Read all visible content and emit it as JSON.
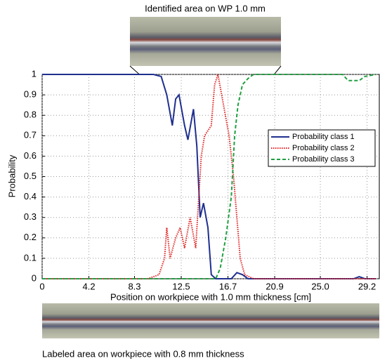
{
  "chart_data": {
    "type": "line",
    "title": "Identified area on WP 1.0 mm",
    "subtitle": "Labeled area on workpiece with 0.8 mm thickness",
    "xlabel": "Position on workpiece with 1.0 mm thickness  [cm]",
    "ylabel": "Probability",
    "xlim": [
      0,
      30.3
    ],
    "ylim": [
      0,
      1
    ],
    "xticks": [
      0,
      4.2,
      8.3,
      12.5,
      16.7,
      20.9,
      {
        "value": 25,
        "label": "25.0"
      },
      29.2
    ],
    "yticks": [
      0,
      0.1,
      0.2,
      0.3,
      0.4,
      0.5,
      0.6,
      0.7,
      0.8,
      0.9,
      1
    ],
    "grid": true,
    "legend": "right",
    "series": [
      {
        "name": "Probability class 1",
        "color": "#1f2f8f",
        "dash": "solid",
        "x": [
          0,
          5,
          10,
          10.7,
          11.2,
          11.7,
          12.0,
          12.3,
          12.8,
          13.1,
          13.6,
          13.9,
          14.2,
          14.5,
          14.9,
          15.2,
          15.6,
          17,
          17.5,
          18,
          18.5,
          28,
          28.5,
          29,
          30
        ],
        "values": [
          1,
          1,
          1,
          0.99,
          0.9,
          0.75,
          0.88,
          0.9,
          0.75,
          0.68,
          0.83,
          0.65,
          0.3,
          0.37,
          0.25,
          0.02,
          0,
          0,
          0.03,
          0.02,
          0,
          0,
          0.01,
          0,
          0
        ]
      },
      {
        "name": "Probability class 2",
        "color": "#e02020",
        "dash": "dotted",
        "x": [
          0,
          9.5,
          10.5,
          11.0,
          11.2,
          11.5,
          12.0,
          12.4,
          12.8,
          13.3,
          13.8,
          14.3,
          14.6,
          15.2,
          15.5,
          15.8,
          16.3,
          16.8,
          17.2,
          17.5,
          17.8,
          18.2,
          19,
          30
        ],
        "values": [
          0,
          0,
          0.02,
          0.1,
          0.25,
          0.1,
          0.2,
          0.25,
          0.15,
          0.3,
          0.15,
          0.6,
          0.7,
          0.75,
          0.95,
          1,
          0.85,
          0.7,
          0.5,
          0.3,
          0.1,
          0.02,
          0,
          0
        ]
      },
      {
        "name": "Probability class 3",
        "color": "#20a040",
        "dash": "dashed",
        "x": [
          0,
          15.6,
          16.0,
          16.5,
          17.0,
          17.3,
          17.6,
          18.0,
          18.5,
          19,
          27,
          27.5,
          28.5,
          29,
          30
        ],
        "values": [
          0,
          0,
          0.05,
          0.2,
          0.4,
          0.7,
          0.85,
          0.95,
          0.98,
          1,
          1,
          0.97,
          0.97,
          0.99,
          1
        ]
      }
    ]
  }
}
